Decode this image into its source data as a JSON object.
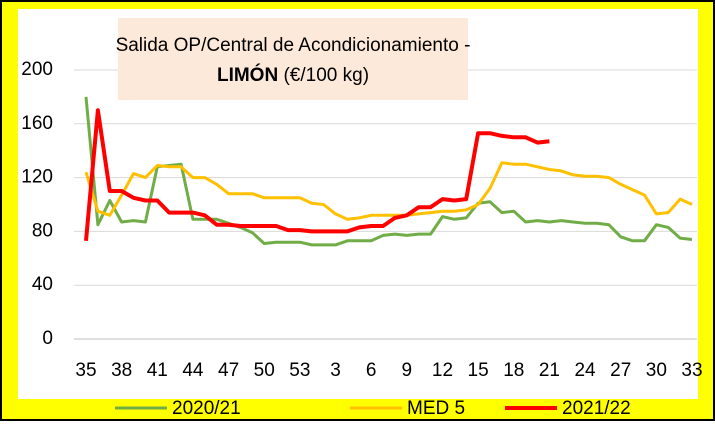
{
  "chart_data": {
    "type": "line",
    "title": "Salida OP/Central de Acondicionamiento -",
    "title_product": "LIMÓN",
    "title_unit": "(€/100 kg)",
    "categories": [
      "35",
      null,
      null,
      "38",
      null,
      null,
      "41",
      null,
      null,
      "44",
      null,
      null,
      "47",
      null,
      null,
      "50",
      null,
      null,
      "53",
      null,
      null,
      "3",
      null,
      null,
      "6",
      null,
      null,
      "9",
      null,
      null,
      "12",
      null,
      null,
      "15",
      null,
      null,
      "18",
      null,
      null,
      "21",
      null,
      null,
      "24",
      null,
      null,
      "27",
      null,
      null,
      "30",
      null,
      null,
      "33"
    ],
    "series": [
      {
        "name": "2020/21",
        "color": "#70ad47",
        "values": [
          180,
          85,
          103,
          87,
          88,
          87,
          128,
          129,
          130,
          89,
          89,
          89,
          86,
          83,
          79,
          71,
          72,
          72,
          72,
          70,
          70,
          70,
          73,
          73,
          73,
          77,
          78,
          77,
          78,
          78,
          91,
          89,
          90,
          101,
          102,
          94,
          95,
          87,
          88,
          87,
          88,
          87,
          86,
          86,
          85,
          76,
          73,
          73,
          85,
          83,
          75,
          74
        ]
      },
      {
        "name": "MED 5",
        "color": "#ffc000",
        "values": [
          124,
          95,
          92,
          107,
          123,
          120,
          129,
          128,
          128,
          120,
          120,
          115,
          108,
          108,
          108,
          105,
          105,
          105,
          105,
          101,
          100,
          93,
          89,
          90,
          92,
          92,
          92,
          92,
          93,
          94,
          95,
          95,
          96,
          100,
          112,
          131,
          130,
          130,
          128,
          126,
          125,
          122,
          121,
          121,
          120,
          115,
          111,
          107,
          93,
          94,
          104,
          100
        ]
      },
      {
        "name": "2021/22",
        "color": "#ff0000",
        "values": [
          73,
          170,
          110,
          110,
          105,
          103,
          103,
          94,
          94,
          94,
          92,
          85,
          85,
          84,
          84,
          84,
          84,
          81,
          81,
          80,
          80,
          80,
          80,
          83,
          84,
          84,
          90,
          92,
          98,
          98,
          104,
          103,
          104,
          153,
          153,
          151,
          150,
          150,
          146,
          147,
          null,
          null,
          null,
          null,
          null,
          null,
          null,
          null,
          null,
          null,
          null,
          null
        ]
      }
    ],
    "ylim": [
      0,
      200
    ],
    "yticks": [
      0,
      40,
      80,
      120,
      160,
      200
    ],
    "grid": true,
    "legend": "bottom"
  }
}
